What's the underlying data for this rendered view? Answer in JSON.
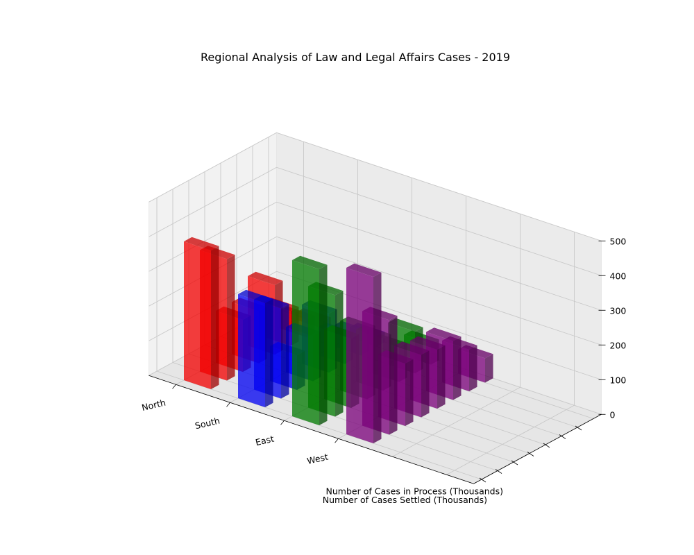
{
  "chart_data": {
    "type": "bar",
    "title": "Regional Analysis of Law and Legal Affairs Cases - 2019",
    "categories": [
      "North",
      "South",
      "East",
      "West"
    ],
    "series_axis_labels": [
      "Number of Cases Settled (Thousands)",
      "Number of Cases in Process (Thousands)"
    ],
    "series": [
      {
        "values": [
          400,
          300,
          450,
          480
        ]
      },
      {
        "values": [
          350,
          260,
          350,
          330
        ]
      },
      {
        "values": [
          150,
          100,
          200,
          180
        ]
      },
      {
        "values": [
          150,
          130,
          200,
          180
        ]
      },
      {
        "values": [
          200,
          170,
          150,
          170
        ]
      },
      {
        "values": [
          100,
          80,
          100,
          170
        ]
      },
      {
        "values": [
          50,
          60,
          120,
          120
        ]
      },
      {
        "values": [
          20,
          30,
          60,
          70
        ]
      }
    ],
    "zlim": [
      0,
      500
    ],
    "z_ticks": [
      0,
      100,
      200,
      300,
      400,
      500
    ],
    "colors": [
      "#ff0000",
      "#0000ff",
      "#008000",
      "#800080"
    ],
    "grid": true
  }
}
